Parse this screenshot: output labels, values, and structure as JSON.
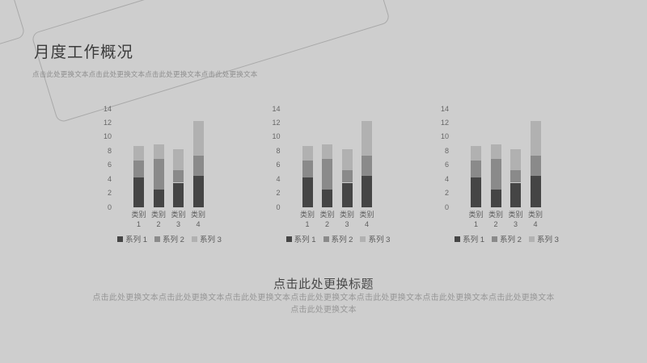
{
  "slide": {
    "title": "月度工作概况",
    "subtitle": "点击此处更换文本点击此处更换文本点击此处更换文本点击此处更换文本",
    "section_heading": "点击此处更换标题",
    "body_text": "点击此处更换文本点击此处更换文本点击此处更换文本点击此处更换文本点击此处更换文本点击此处更换文本点击此处更换文本点击此处更换文本"
  },
  "colors": {
    "background": "#cecece",
    "series1": "#454545",
    "series2": "#8a8a8a",
    "series3": "#b1b1b1",
    "title_text": "#3c3c3c",
    "muted_text": "#8f8f8f",
    "axis_text": "#676767",
    "decorative_line": "#a9a9a9"
  },
  "chart_data": [
    {
      "type": "bar",
      "stacked": true,
      "title": "",
      "xlabel": "",
      "ylabel": "",
      "categories": [
        "类别 1",
        "类别 2",
        "类别 3",
        "类别 4"
      ],
      "series": [
        {
          "name": "系列 1",
          "color": "#454545",
          "values": [
            4.3,
            2.5,
            3.5,
            4.5
          ]
        },
        {
          "name": "系列 2",
          "color": "#8a8a8a",
          "values": [
            2.4,
            4.4,
            1.8,
            2.8
          ]
        },
        {
          "name": "系列 3",
          "color": "#b1b1b1",
          "values": [
            2.0,
            2.0,
            3.0,
            5.0
          ]
        }
      ],
      "ylim": [
        0,
        14
      ],
      "ytick_step": 2,
      "grid": false,
      "legend_position": "bottom"
    },
    {
      "type": "bar",
      "stacked": true,
      "title": "",
      "xlabel": "",
      "ylabel": "",
      "categories": [
        "类别 1",
        "类别 2",
        "类别 3",
        "类别 4"
      ],
      "series": [
        {
          "name": "系列 1",
          "color": "#454545",
          "values": [
            4.3,
            2.5,
            3.5,
            4.5
          ]
        },
        {
          "name": "系列 2",
          "color": "#8a8a8a",
          "values": [
            2.4,
            4.4,
            1.8,
            2.8
          ]
        },
        {
          "name": "系列 3",
          "color": "#b1b1b1",
          "values": [
            2.0,
            2.0,
            3.0,
            5.0
          ]
        }
      ],
      "ylim": [
        0,
        14
      ],
      "ytick_step": 2,
      "grid": false,
      "legend_position": "bottom"
    },
    {
      "type": "bar",
      "stacked": true,
      "title": "",
      "xlabel": "",
      "ylabel": "",
      "categories": [
        "类别 1",
        "类别 2",
        "类别 3",
        "类别 4"
      ],
      "series": [
        {
          "name": "系列 1",
          "color": "#454545",
          "values": [
            4.3,
            2.5,
            3.5,
            4.5
          ]
        },
        {
          "name": "系列 2",
          "color": "#8a8a8a",
          "values": [
            2.4,
            4.4,
            1.8,
            2.8
          ]
        },
        {
          "name": "系列 3",
          "color": "#b1b1b1",
          "values": [
            2.0,
            2.0,
            3.0,
            5.0
          ]
        }
      ],
      "ylim": [
        0,
        14
      ],
      "ytick_step": 2,
      "grid": false,
      "legend_position": "bottom"
    }
  ]
}
